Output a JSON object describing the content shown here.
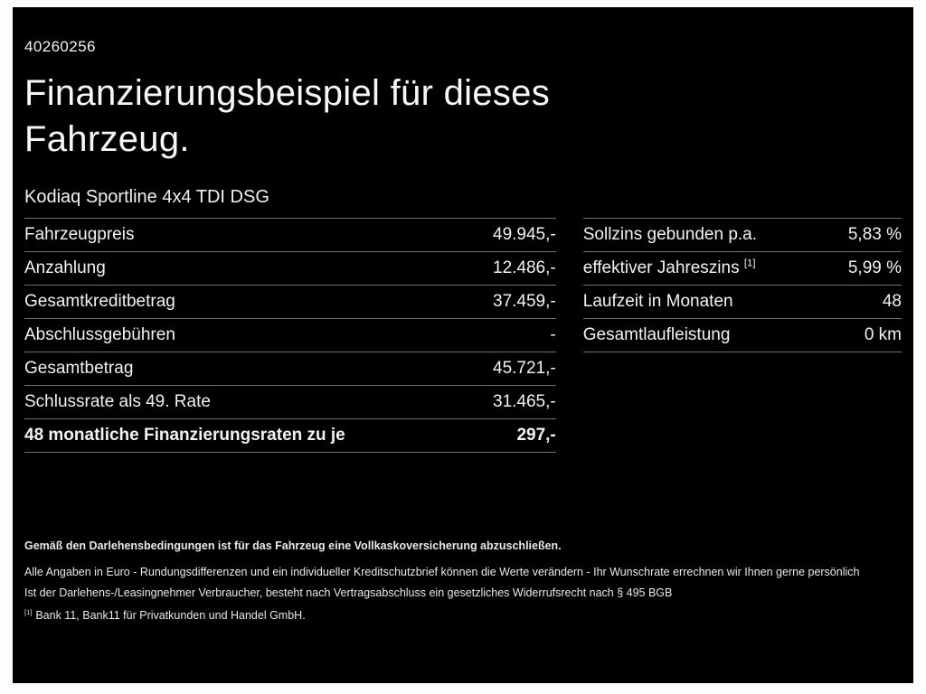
{
  "meta": {
    "id_number": "40260256"
  },
  "header": {
    "title_line1": "Finanzierungsbeispiel für dieses",
    "title_line2": "Fahrzeug.",
    "vehicle_name": "Kodiaq Sportline 4x4 TDI DSG"
  },
  "left_table": {
    "rows": [
      {
        "label": "Fahrzeugpreis",
        "value": "49.945,-"
      },
      {
        "label": "Anzahlung",
        "value": "12.486,-"
      },
      {
        "label": "Gesamtkreditbetrag",
        "value": "37.459,-"
      },
      {
        "label": "Abschlussgebühren",
        "value": "-"
      },
      {
        "label": "Gesamtbetrag",
        "value": "45.721,-"
      },
      {
        "label": "Schlussrate als 49. Rate",
        "value": "31.465,-"
      },
      {
        "label": "48 monatliche Finanzierungsraten zu je",
        "value": "297,-"
      }
    ]
  },
  "right_table": {
    "rows": [
      {
        "label": "Sollzins gebunden p.a.",
        "value": "5,83 %"
      },
      {
        "label": "effektiver Jahreszins",
        "label_sup": "[1]",
        "value": "5,99 %"
      },
      {
        "label": "Laufzeit in Monaten",
        "value": "48"
      },
      {
        "label": "Gesamtlaufleistung",
        "value": "0 km"
      }
    ]
  },
  "footer": {
    "bold_line": "Gemäß den Darlehensbedingungen ist für das Fahrzeug eine Vollkaskoversicherung abzuschließen.",
    "line1": "Alle Angaben in Euro - Rundungsdifferenzen und ein individueller Kreditschutzbrief können die Werte verändern - Ihr Wunschrate errechnen wir Ihnen gerne persönlich",
    "line2": "Ist der Darlehens-/Leasingnehmer Verbraucher, besteht nach Vertragsabschluss ein gesetzliches Widerrufsrecht nach § 495 BGB",
    "footnote_marker": "[1]",
    "footnote_text": "Bank 11, Bank11 für Privatkunden und Handel GmbH."
  },
  "colors": {
    "background": "#000000",
    "text": "#ffffff",
    "divider": "#6e6e6e",
    "frame": "#fdfdfd"
  }
}
